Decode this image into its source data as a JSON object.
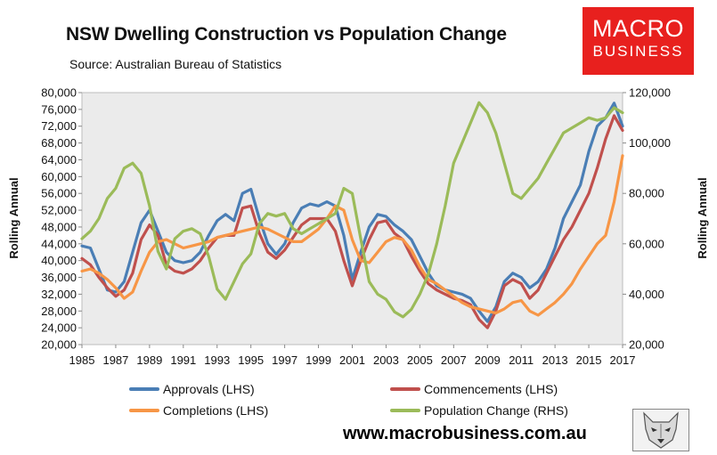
{
  "header": {
    "title": "NSW Dwelling Construction vs Population Change",
    "source": "Source: Australian Bureau of Statistics",
    "logo_line1": "MACRO",
    "logo_line2": "BUSINESS",
    "website": "www.macrobusiness.com.au"
  },
  "chart_data": {
    "type": "line",
    "title": "NSW Dwelling Construction vs Population Change",
    "subtitle": "Source: Australian Bureau of Statistics",
    "ylabel": "Rolling Annual",
    "y2label": "Rolling Annual",
    "xlim": [
      1985,
      2017
    ],
    "ylim": [
      20000,
      80000
    ],
    "y2lim": [
      20000,
      120000
    ],
    "x_ticks": [
      1985,
      1987,
      1989,
      1991,
      1993,
      1995,
      1997,
      1999,
      2001,
      2003,
      2005,
      2007,
      2009,
      2011,
      2013,
      2015,
      2017
    ],
    "x_tick_labels": [
      "1985",
      "1987",
      "1989",
      "1991",
      "1993",
      "1995",
      "1997",
      "1999",
      "2001",
      "2003",
      "2005",
      "2007",
      "2009",
      "2011",
      "2013",
      "2015",
      "2017"
    ],
    "y_ticks": [
      20000,
      24000,
      28000,
      32000,
      36000,
      40000,
      44000,
      48000,
      52000,
      56000,
      60000,
      64000,
      68000,
      72000,
      76000,
      80000
    ],
    "y_tick_labels": [
      "20,000",
      "24,000",
      "28,000",
      "32,000",
      "36,000",
      "40,000",
      "44,000",
      "48,000",
      "52,000",
      "56,000",
      "60,000",
      "64,000",
      "68,000",
      "72,000",
      "76,000",
      "80,000"
    ],
    "y2_ticks": [
      20000,
      40000,
      60000,
      80000,
      100000,
      120000
    ],
    "y2_tick_labels": [
      "20,000",
      "40,000",
      "60,000",
      "80,000",
      "100,000",
      "120,000"
    ],
    "grid": false,
    "legend_position": "bottom",
    "plot_background": "#ebebeb",
    "series": [
      {
        "name": "Approvals (LHS)",
        "axis": "left",
        "color": "#4a7eb5",
        "points": [
          [
            1985,
            43500
          ],
          [
            1985.5,
            43000
          ],
          [
            1986,
            38000
          ],
          [
            1986.5,
            33000
          ],
          [
            1987,
            32500
          ],
          [
            1987.5,
            35000
          ],
          [
            1988,
            42000
          ],
          [
            1988.5,
            49000
          ],
          [
            1989,
            52000
          ],
          [
            1989.5,
            47000
          ],
          [
            1990,
            42000
          ],
          [
            1990.5,
            40000
          ],
          [
            1991,
            39500
          ],
          [
            1991.5,
            40000
          ],
          [
            1992,
            42000
          ],
          [
            1992.5,
            46000
          ],
          [
            1993,
            49500
          ],
          [
            1993.5,
            51000
          ],
          [
            1994,
            49500
          ],
          [
            1994.5,
            56000
          ],
          [
            1995,
            57000
          ],
          [
            1995.5,
            50000
          ],
          [
            1996,
            44000
          ],
          [
            1996.5,
            41500
          ],
          [
            1997,
            44000
          ],
          [
            1997.5,
            49000
          ],
          [
            1998,
            52500
          ],
          [
            1998.5,
            53500
          ],
          [
            1999,
            53000
          ],
          [
            1999.5,
            54000
          ],
          [
            2000,
            53000
          ],
          [
            2000.5,
            46000
          ],
          [
            2001,
            35500
          ],
          [
            2001.5,
            42000
          ],
          [
            2002,
            48000
          ],
          [
            2002.5,
            51000
          ],
          [
            2003,
            50500
          ],
          [
            2003.5,
            48500
          ],
          [
            2004,
            47000
          ],
          [
            2004.5,
            45000
          ],
          [
            2005,
            41000
          ],
          [
            2005.5,
            37000
          ],
          [
            2006,
            34000
          ],
          [
            2006.5,
            33000
          ],
          [
            2007,
            32500
          ],
          [
            2007.5,
            32000
          ],
          [
            2008,
            31000
          ],
          [
            2008.5,
            28000
          ],
          [
            2009,
            25500
          ],
          [
            2009.5,
            29000
          ],
          [
            2010,
            35000
          ],
          [
            2010.5,
            37000
          ],
          [
            2011,
            36000
          ],
          [
            2011.5,
            33500
          ],
          [
            2012,
            35000
          ],
          [
            2012.5,
            38000
          ],
          [
            2013,
            43000
          ],
          [
            2013.5,
            50000
          ],
          [
            2014,
            54000
          ],
          [
            2014.5,
            58000
          ],
          [
            2015,
            66000
          ],
          [
            2015.5,
            72000
          ],
          [
            2016,
            74000
          ],
          [
            2016.5,
            77500
          ],
          [
            2017,
            72000
          ]
        ]
      },
      {
        "name": "Commencements (LHS)",
        "axis": "left",
        "color": "#c0504d",
        "points": [
          [
            1985,
            40500
          ],
          [
            1985.5,
            39000
          ],
          [
            1986,
            36000
          ],
          [
            1986.5,
            33500
          ],
          [
            1987,
            31500
          ],
          [
            1987.5,
            33000
          ],
          [
            1988,
            37000
          ],
          [
            1988.5,
            45000
          ],
          [
            1989,
            48500
          ],
          [
            1989.5,
            46000
          ],
          [
            1990,
            39000
          ],
          [
            1990.5,
            37500
          ],
          [
            1991,
            37000
          ],
          [
            1991.5,
            38000
          ],
          [
            1992,
            40000
          ],
          [
            1992.5,
            43000
          ],
          [
            1993,
            45500
          ],
          [
            1993.5,
            46000
          ],
          [
            1994,
            46000
          ],
          [
            1994.5,
            52500
          ],
          [
            1995,
            53000
          ],
          [
            1995.5,
            46500
          ],
          [
            1996,
            42000
          ],
          [
            1996.5,
            40500
          ],
          [
            1997,
            42500
          ],
          [
            1997.5,
            45500
          ],
          [
            1998,
            48500
          ],
          [
            1998.5,
            50000
          ],
          [
            1999,
            50000
          ],
          [
            1999.5,
            50000
          ],
          [
            2000,
            47000
          ],
          [
            2000.5,
            40000
          ],
          [
            2001,
            34000
          ],
          [
            2001.5,
            40000
          ],
          [
            2002,
            45000
          ],
          [
            2002.5,
            49000
          ],
          [
            2003,
            49500
          ],
          [
            2003.5,
            46500
          ],
          [
            2004,
            45000
          ],
          [
            2004.5,
            41000
          ],
          [
            2005,
            37500
          ],
          [
            2005.5,
            34500
          ],
          [
            2006,
            33000
          ],
          [
            2006.5,
            32000
          ],
          [
            2007,
            31000
          ],
          [
            2007.5,
            30500
          ],
          [
            2008,
            29500
          ],
          [
            2008.5,
            26000
          ],
          [
            2009,
            24000
          ],
          [
            2009.5,
            28000
          ],
          [
            2010,
            34000
          ],
          [
            2010.5,
            35500
          ],
          [
            2011,
            34500
          ],
          [
            2011.5,
            31000
          ],
          [
            2012,
            33000
          ],
          [
            2012.5,
            37000
          ],
          [
            2013,
            41000
          ],
          [
            2013.5,
            45000
          ],
          [
            2014,
            48000
          ],
          [
            2014.5,
            52000
          ],
          [
            2015,
            56000
          ],
          [
            2015.5,
            62000
          ],
          [
            2016,
            69000
          ],
          [
            2016.5,
            74500
          ],
          [
            2017,
            71000
          ]
        ]
      },
      {
        "name": "Completions (LHS)",
        "axis": "left",
        "color": "#f79646",
        "points": [
          [
            1985,
            37500
          ],
          [
            1985.5,
            38000
          ],
          [
            1986,
            37000
          ],
          [
            1986.5,
            35500
          ],
          [
            1987,
            33500
          ],
          [
            1987.5,
            31000
          ],
          [
            1988,
            32500
          ],
          [
            1988.5,
            37500
          ],
          [
            1989,
            42000
          ],
          [
            1989.5,
            44500
          ],
          [
            1990,
            45000
          ],
          [
            1990.5,
            44000
          ],
          [
            1991,
            43000
          ],
          [
            1991.5,
            43500
          ],
          [
            1992,
            44000
          ],
          [
            1992.5,
            44500
          ],
          [
            1993,
            45500
          ],
          [
            1993.5,
            46000
          ],
          [
            1994,
            46500
          ],
          [
            1994.5,
            47000
          ],
          [
            1995,
            47500
          ],
          [
            1995.5,
            48000
          ],
          [
            1996,
            47500
          ],
          [
            1996.5,
            46500
          ],
          [
            1997,
            45500
          ],
          [
            1997.5,
            44500
          ],
          [
            1998,
            44500
          ],
          [
            1998.5,
            46000
          ],
          [
            1999,
            47500
          ],
          [
            1999.5,
            50000
          ],
          [
            2000,
            53000
          ],
          [
            2000.5,
            52000
          ],
          [
            2001,
            45000
          ],
          [
            2001.5,
            40000
          ],
          [
            2002,
            39500
          ],
          [
            2002.5,
            42000
          ],
          [
            2003,
            44500
          ],
          [
            2003.5,
            45500
          ],
          [
            2004,
            45000
          ],
          [
            2004.5,
            42500
          ],
          [
            2005,
            38500
          ],
          [
            2005.5,
            35500
          ],
          [
            2006,
            34500
          ],
          [
            2006.5,
            33000
          ],
          [
            2007,
            31500
          ],
          [
            2007.5,
            30000
          ],
          [
            2008,
            29000
          ],
          [
            2008.5,
            28500
          ],
          [
            2009,
            28000
          ],
          [
            2009.5,
            27500
          ],
          [
            2010,
            28500
          ],
          [
            2010.5,
            30000
          ],
          [
            2011,
            30500
          ],
          [
            2011.5,
            28000
          ],
          [
            2012,
            27000
          ],
          [
            2012.5,
            28500
          ],
          [
            2013,
            30000
          ],
          [
            2013.5,
            32000
          ],
          [
            2014,
            34500
          ],
          [
            2014.5,
            38000
          ],
          [
            2015,
            41000
          ],
          [
            2015.5,
            44000
          ],
          [
            2016,
            46000
          ],
          [
            2016.5,
            54000
          ],
          [
            2017,
            65000
          ]
        ]
      },
      {
        "name": "Population Change (RHS)",
        "axis": "right",
        "color": "#9bbb59",
        "points": [
          [
            1985,
            62000
          ],
          [
            1985.5,
            65000
          ],
          [
            1986,
            70000
          ],
          [
            1986.5,
            78000
          ],
          [
            1987,
            82000
          ],
          [
            1987.5,
            90000
          ],
          [
            1988,
            92000
          ],
          [
            1988.5,
            88000
          ],
          [
            1989,
            75000
          ],
          [
            1989.5,
            57000
          ],
          [
            1990,
            50000
          ],
          [
            1990.5,
            62000
          ],
          [
            1991,
            65000
          ],
          [
            1991.5,
            66000
          ],
          [
            1992,
            64000
          ],
          [
            1992.5,
            55000
          ],
          [
            1993,
            42000
          ],
          [
            1993.5,
            38000
          ],
          [
            1994,
            45000
          ],
          [
            1994.5,
            52000
          ],
          [
            1995,
            56000
          ],
          [
            1995.5,
            68000
          ],
          [
            1996,
            72000
          ],
          [
            1996.5,
            71000
          ],
          [
            1997,
            72000
          ],
          [
            1997.5,
            66000
          ],
          [
            1998,
            64000
          ],
          [
            1998.5,
            66000
          ],
          [
            1999,
            68000
          ],
          [
            1999.5,
            70000
          ],
          [
            2000,
            72000
          ],
          [
            2000.5,
            82000
          ],
          [
            2001,
            80000
          ],
          [
            2001.5,
            62000
          ],
          [
            2002,
            45000
          ],
          [
            2002.5,
            40000
          ],
          [
            2003,
            38000
          ],
          [
            2003.5,
            33000
          ],
          [
            2004,
            31000
          ],
          [
            2004.5,
            34000
          ],
          [
            2005,
            40000
          ],
          [
            2005.5,
            48000
          ],
          [
            2006,
            60000
          ],
          [
            2006.5,
            75000
          ],
          [
            2007,
            92000
          ],
          [
            2007.5,
            100000
          ],
          [
            2008,
            108000
          ],
          [
            2008.5,
            116000
          ],
          [
            2009,
            112000
          ],
          [
            2009.5,
            104000
          ],
          [
            2010,
            92000
          ],
          [
            2010.5,
            80000
          ],
          [
            2011,
            78000
          ],
          [
            2011.5,
            82000
          ],
          [
            2012,
            86000
          ],
          [
            2012.5,
            92000
          ],
          [
            2013,
            98000
          ],
          [
            2013.5,
            104000
          ],
          [
            2014,
            106000
          ],
          [
            2014.5,
            108000
          ],
          [
            2015,
            110000
          ],
          [
            2015.5,
            109000
          ],
          [
            2016,
            110000
          ],
          [
            2016.5,
            114000
          ],
          [
            2017,
            112000
          ]
        ]
      }
    ]
  }
}
